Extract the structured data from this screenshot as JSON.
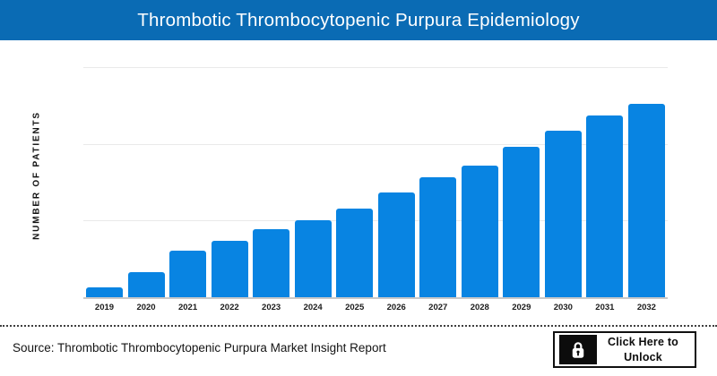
{
  "header": {
    "title": "Thrombotic Thrombocytopenic Purpura Epidemiology",
    "background": "#0a6bb4",
    "text_color": "#ffffff"
  },
  "chart_data": {
    "type": "bar",
    "title": "Thrombotic Thrombocytopenic Purpura Epidemiology",
    "categories": [
      "2019",
      "2020",
      "2021",
      "2022",
      "2023",
      "2024",
      "2025",
      "2026",
      "2027",
      "2028",
      "2029",
      "2030",
      "2031",
      "2032"
    ],
    "values": [
      5,
      13,
      24,
      29,
      35,
      40,
      46,
      54,
      62,
      68,
      78,
      86,
      94,
      100
    ],
    "values_note": "relative index estimated from bar heights; y-axis shows no numeric tick labels (max 2032 bar = 100)",
    "xlabel": "",
    "ylabel": "NUMBER OF PATIENTS",
    "y_tick_labels": [],
    "ylim": [
      0,
      120
    ],
    "grid": true,
    "gridlines_horizontal": 3,
    "legend": false,
    "bar_color": "#0884e2",
    "axis_line_color": "#c9c9c9"
  },
  "footer": {
    "source_text": "Source: Thrombotic Thrombocytopenic Purpura Market Insight Report",
    "divider_style": "dotted",
    "unlock_button": {
      "icon": "lock-icon",
      "label_line1": "Click Here to",
      "label_line2": "Unlock"
    }
  }
}
